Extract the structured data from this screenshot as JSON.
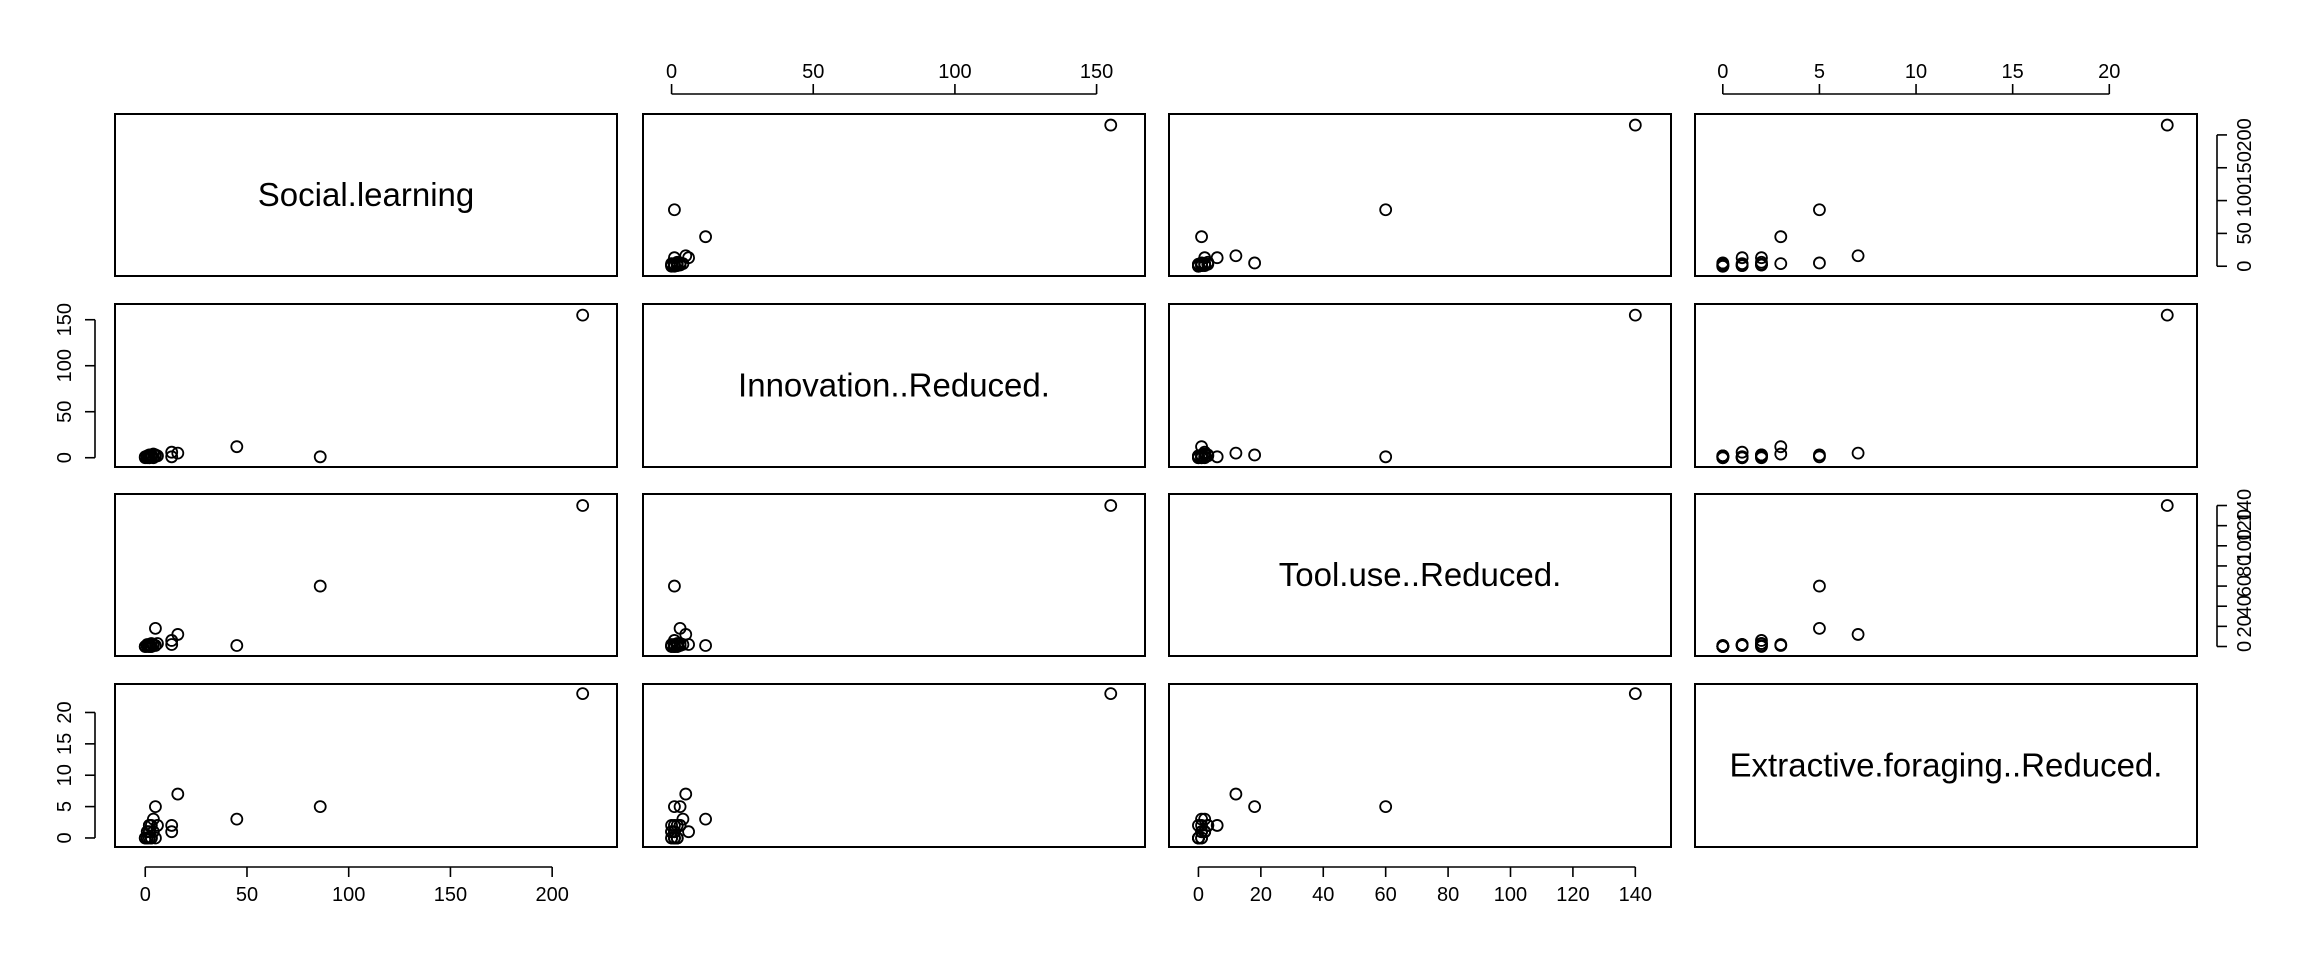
{
  "chart_data": {
    "type": "scatter",
    "subtype": "scatterplot-matrix",
    "variables": [
      "Social.learning",
      "Innovation..Reduced.",
      "Tool.use..Reduced.",
      "Extractive.foraging..Reduced."
    ],
    "axes": [
      {
        "lim": [
          -5,
          222
        ],
        "ticks": [
          0,
          50,
          100,
          150,
          200
        ],
        "tick_labels": [
          "0",
          "50",
          "100",
          "150",
          "200"
        ]
      },
      {
        "lim": [
          -3,
          160
        ],
        "ticks": [
          0,
          50,
          100,
          150
        ],
        "tick_labels": [
          "0",
          "50",
          "100",
          "150"
        ]
      },
      {
        "lim": [
          -3,
          145
        ],
        "ticks": [
          0,
          20,
          40,
          60,
          80,
          100,
          120,
          140
        ],
        "tick_labels": [
          "0",
          "20",
          "40",
          "60",
          "80",
          "100",
          "120",
          "140"
        ]
      },
      {
        "lim": [
          -0.4,
          23.5
        ],
        "ticks": [
          0,
          5,
          10,
          15,
          20
        ],
        "tick_labels": [
          "0",
          "5",
          "10",
          "15",
          "20"
        ]
      }
    ],
    "axis_placement": {
      "top": [
        1,
        3
      ],
      "bottom": [
        0,
        2
      ],
      "left": [
        1,
        3
      ],
      "right": [
        0,
        2
      ]
    },
    "observations": [
      [
        215,
        155,
        140,
        23
      ],
      [
        86,
        1,
        60,
        5
      ],
      [
        45,
        12,
        1,
        3
      ],
      [
        16,
        5,
        12,
        7
      ],
      [
        13,
        6,
        2,
        1
      ],
      [
        13,
        1,
        6,
        2
      ],
      [
        5,
        3,
        18,
        5
      ],
      [
        4,
        4,
        2,
        3
      ],
      [
        6,
        2,
        3,
        2
      ],
      [
        3,
        2,
        0,
        0
      ],
      [
        2,
        3,
        1,
        2
      ],
      [
        4,
        0,
        2,
        1
      ],
      [
        3,
        1,
        0,
        0
      ],
      [
        2,
        0,
        1,
        1
      ],
      [
        1,
        2,
        0,
        0
      ],
      [
        1,
        1,
        2,
        1
      ],
      [
        0,
        0,
        0,
        0
      ],
      [
        1,
        1,
        1,
        1
      ],
      [
        2,
        0,
        0,
        2
      ],
      [
        0,
        1,
        0,
        0
      ],
      [
        3,
        3,
        3,
        2
      ],
      [
        5,
        2,
        1,
        0
      ],
      [
        2,
        1,
        0,
        0
      ],
      [
        1,
        0,
        1,
        0
      ]
    ],
    "grid": false,
    "legend": "none"
  }
}
